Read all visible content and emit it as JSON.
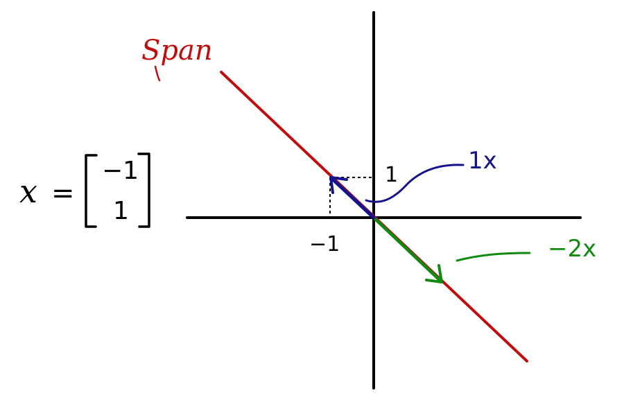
{
  "title": "Span",
  "vector": {
    "name": "x",
    "equals": "=",
    "entries": [
      "−1",
      "1"
    ]
  },
  "axis_ticks": {
    "x_neg": "−1",
    "y_pos": "1"
  },
  "labels": {
    "one_x": "1x",
    "neg_two_x": "−2x"
  },
  "colors": {
    "span": "#c00d0d",
    "one_x": "#14148c",
    "neg_two_x": "#118a11",
    "axes": "#000000"
  }
}
